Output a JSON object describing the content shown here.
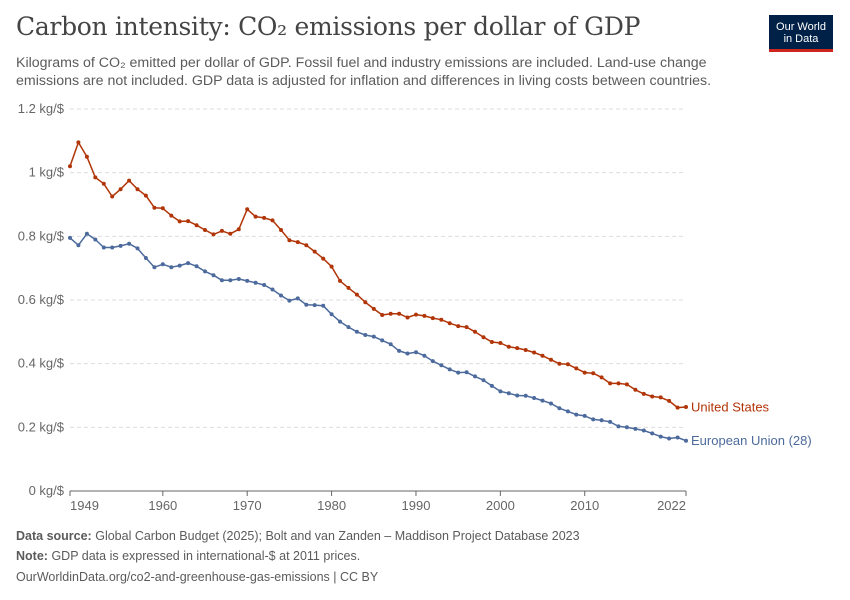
{
  "header": {
    "title": "Carbon intensity: CO₂ emissions per dollar of GDP",
    "subtitle": "Kilograms of CO₂ emitted per dollar of GDP. Fossil fuel and industry emissions are included. Land-use change emissions are not included. GDP data is adjusted for inflation and differences in living costs between countries.",
    "logo_line1": "Our World",
    "logo_line2": "in Data"
  },
  "footer": {
    "source_label": "Data source:",
    "source_text": "Global Carbon Budget (2025); Bolt and van Zanden – Maddison Project Database 2023",
    "note_label": "Note:",
    "note_text": "GDP data is expressed in international-$ at 2011 prices.",
    "url_text": "OurWorldinData.org/co2-and-greenhouse-gas-emissions | CC BY"
  },
  "colors": {
    "united_states": "#b13507",
    "european_union": "#4c6a9c",
    "grid": "#dddddd",
    "axis": "#666666"
  },
  "chart_data": {
    "type": "line",
    "title": "Carbon intensity: CO₂ emissions per dollar of GDP",
    "xlim": [
      1949,
      2022
    ],
    "ylim": [
      0,
      1.2
    ],
    "x_ticks": [
      1949,
      1960,
      1970,
      1980,
      1990,
      2000,
      2010,
      2022
    ],
    "x_tick_labels": [
      "1949",
      "1960",
      "1970",
      "1980",
      "1990",
      "2000",
      "2010",
      "2022"
    ],
    "y_ticks": [
      0,
      0.2,
      0.4,
      0.6,
      0.8,
      1.0,
      1.2
    ],
    "y_tick_labels": [
      "0 kg/$",
      "0.2 kg/$",
      "0.4 kg/$",
      "0.6 kg/$",
      "0.8 kg/$",
      "1 kg/$",
      "1.2 kg/$"
    ],
    "grid": "horizontal dashed",
    "legend": "line-end labels",
    "x": [
      1949,
      1950,
      1951,
      1952,
      1953,
      1954,
      1955,
      1956,
      1957,
      1958,
      1959,
      1960,
      1961,
      1962,
      1963,
      1964,
      1965,
      1966,
      1967,
      1968,
      1969,
      1970,
      1971,
      1972,
      1973,
      1974,
      1975,
      1976,
      1977,
      1978,
      1979,
      1980,
      1981,
      1982,
      1983,
      1984,
      1985,
      1986,
      1987,
      1988,
      1989,
      1990,
      1991,
      1992,
      1993,
      1994,
      1995,
      1996,
      1997,
      1998,
      1999,
      2000,
      2001,
      2002,
      2003,
      2004,
      2005,
      2006,
      2007,
      2008,
      2009,
      2010,
      2011,
      2012,
      2013,
      2014,
      2015,
      2016,
      2017,
      2018,
      2019,
      2020,
      2021,
      2022
    ],
    "series": [
      {
        "name": "United States",
        "color": "#b13507",
        "values": [
          1.02,
          1.095,
          1.05,
          0.985,
          0.965,
          0.925,
          0.948,
          0.975,
          0.948,
          0.928,
          0.89,
          0.888,
          0.865,
          0.847,
          0.848,
          0.835,
          0.82,
          0.806,
          0.817,
          0.808,
          0.822,
          0.885,
          0.862,
          0.858,
          0.85,
          0.82,
          0.788,
          0.782,
          0.772,
          0.752,
          0.73,
          0.705,
          0.66,
          0.638,
          0.617,
          0.593,
          0.572,
          0.553,
          0.557,
          0.557,
          0.545,
          0.554,
          0.55,
          0.543,
          0.538,
          0.527,
          0.518,
          0.515,
          0.5,
          0.483,
          0.468,
          0.465,
          0.453,
          0.449,
          0.443,
          0.435,
          0.425,
          0.412,
          0.4,
          0.398,
          0.385,
          0.372,
          0.37,
          0.357,
          0.338,
          0.338,
          0.335,
          0.318,
          0.305,
          0.297,
          0.294,
          0.283,
          0.262,
          0.264
        ]
      },
      {
        "name": "European Union (28)",
        "color": "#4c6a9c",
        "values": [
          0.795,
          0.772,
          0.808,
          0.79,
          0.765,
          0.765,
          0.77,
          0.777,
          0.762,
          0.732,
          0.703,
          0.712,
          0.703,
          0.708,
          0.716,
          0.706,
          0.69,
          0.678,
          0.662,
          0.662,
          0.666,
          0.66,
          0.654,
          0.647,
          0.633,
          0.614,
          0.598,
          0.605,
          0.585,
          0.584,
          0.582,
          0.555,
          0.532,
          0.515,
          0.5,
          0.49,
          0.485,
          0.473,
          0.461,
          0.44,
          0.432,
          0.436,
          0.425,
          0.408,
          0.395,
          0.382,
          0.372,
          0.373,
          0.36,
          0.348,
          0.33,
          0.313,
          0.307,
          0.3,
          0.299,
          0.292,
          0.284,
          0.275,
          0.26,
          0.25,
          0.24,
          0.236,
          0.225,
          0.222,
          0.217,
          0.203,
          0.2,
          0.195,
          0.19,
          0.181,
          0.171,
          0.165,
          0.168,
          0.158
        ]
      }
    ]
  }
}
